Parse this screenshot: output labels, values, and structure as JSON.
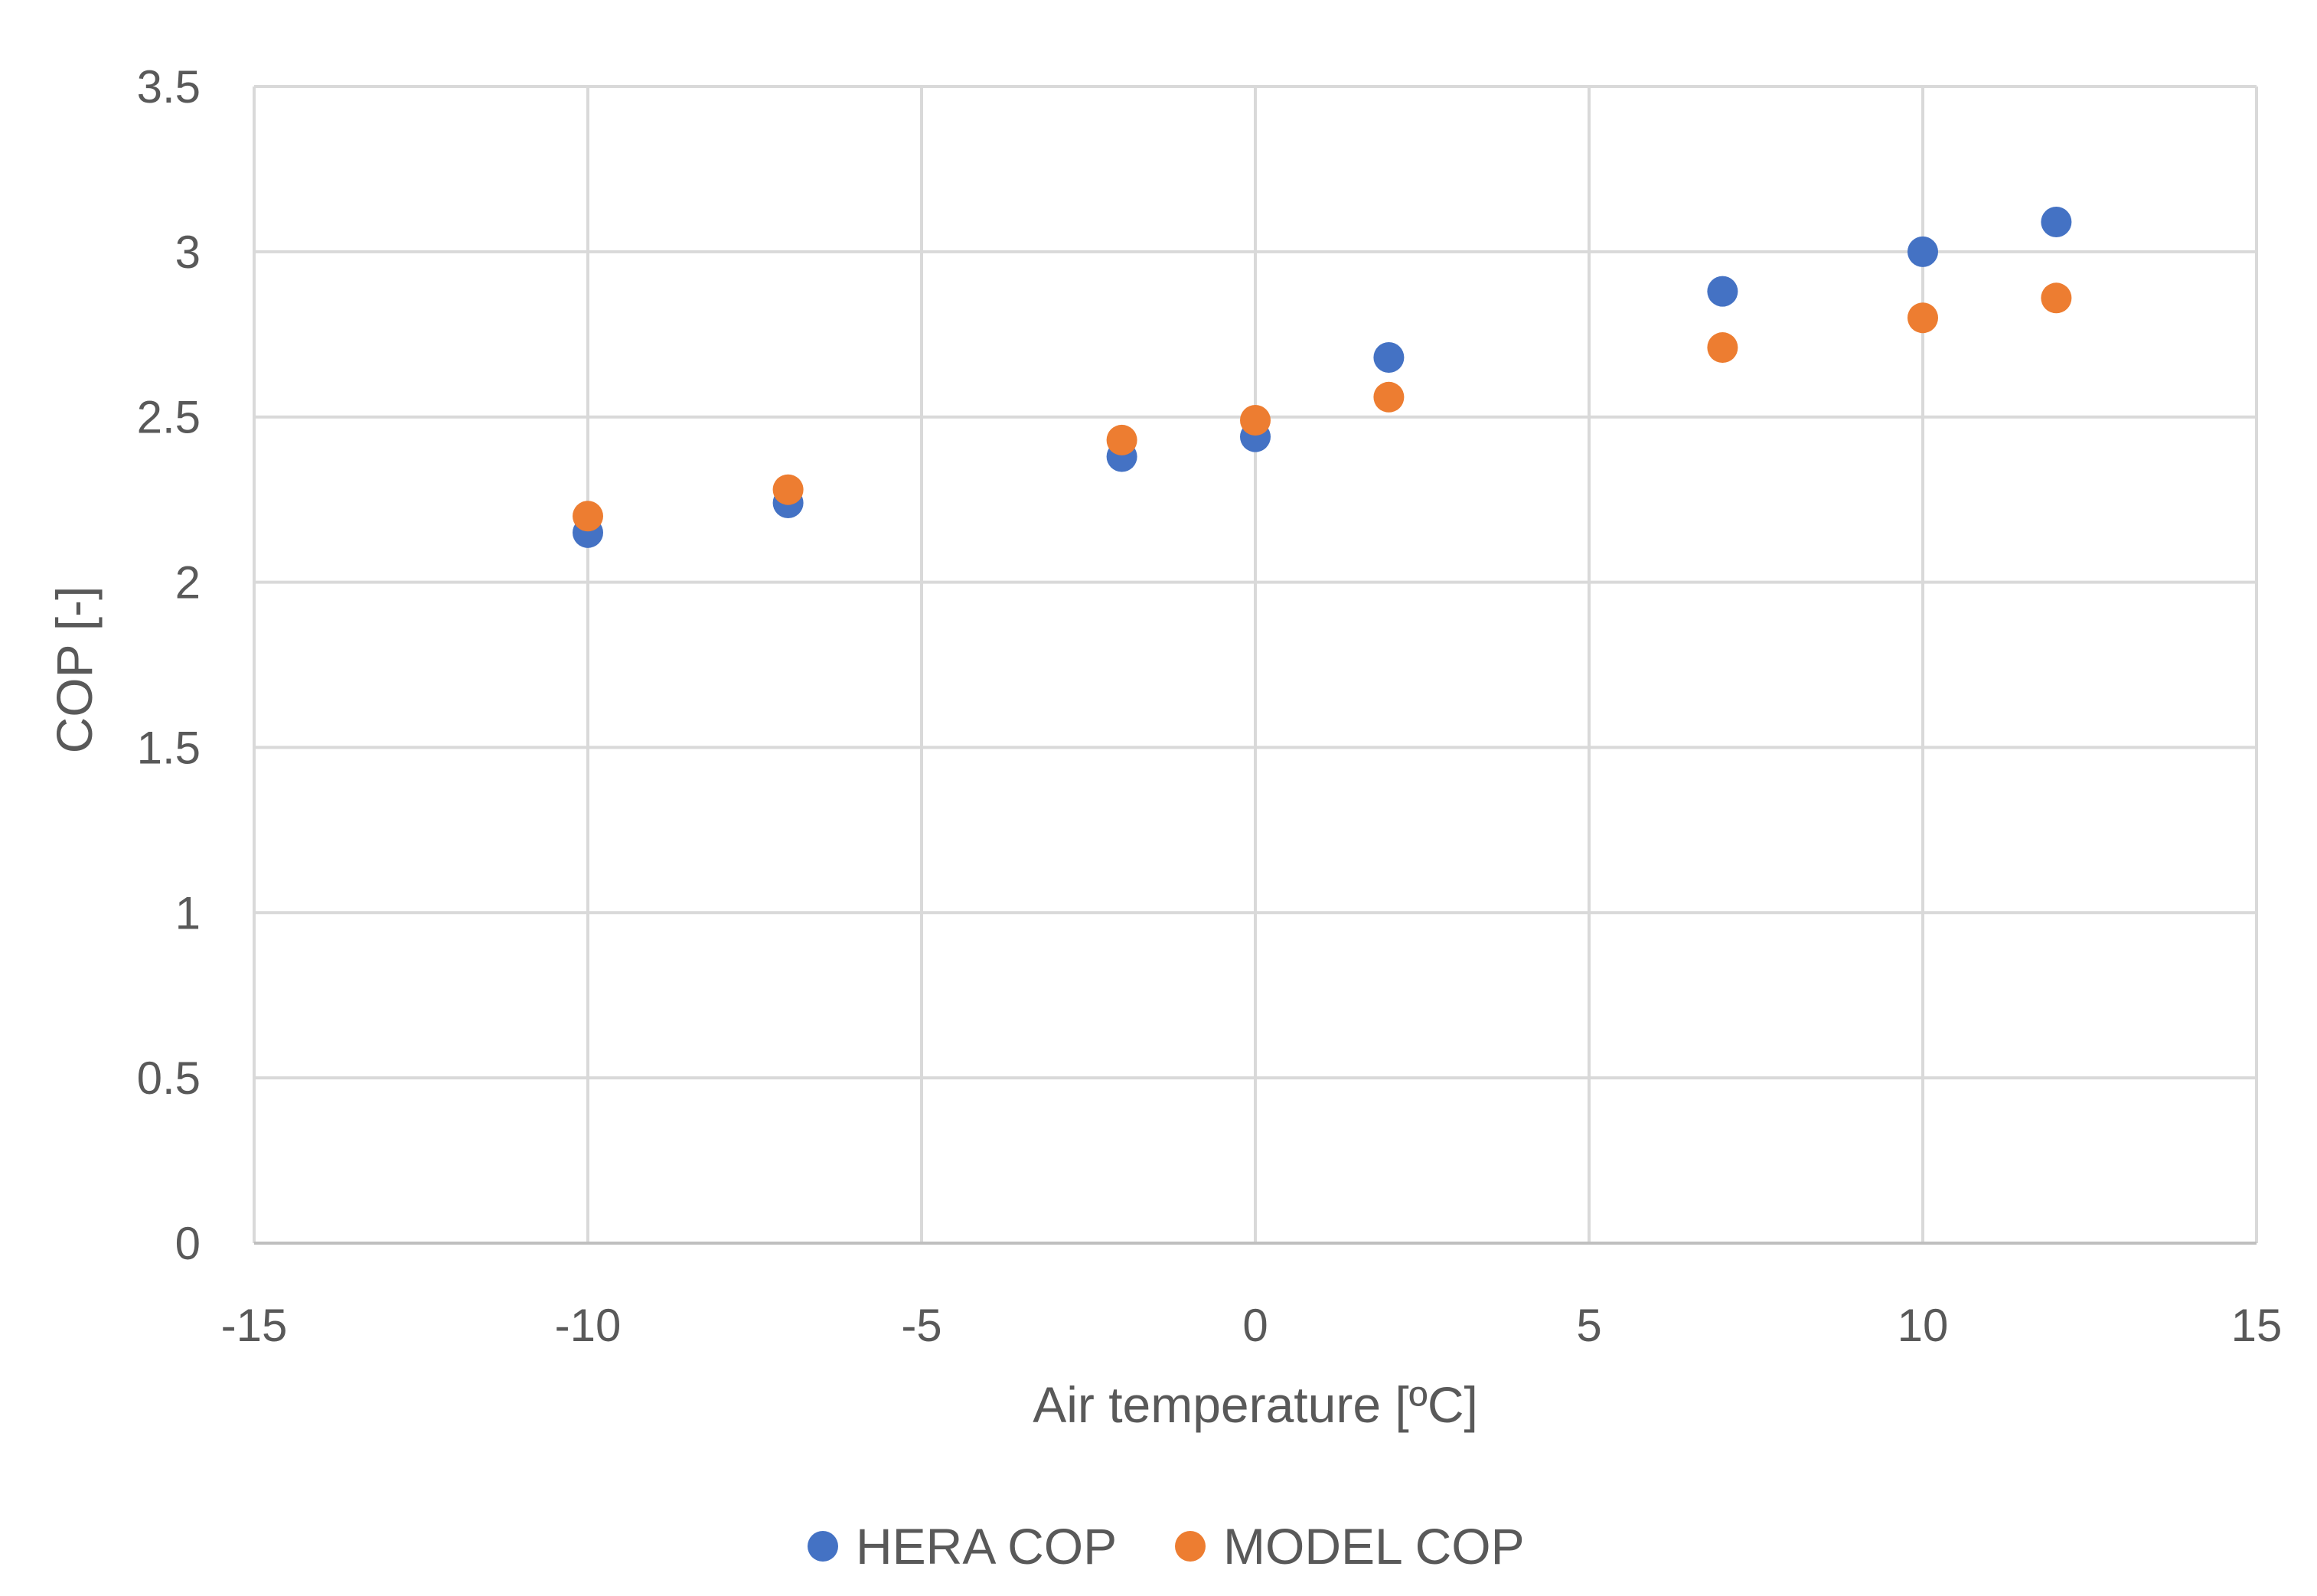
{
  "chart_data": {
    "type": "scatter",
    "title": "",
    "xlabel": "Air temperature [ºC]",
    "ylabel": "COP [-]",
    "xlim": [
      -15,
      15
    ],
    "ylim": [
      0,
      3.5
    ],
    "x_ticks": [
      -15,
      -10,
      -5,
      0,
      5,
      10,
      15
    ],
    "y_ticks": [
      0,
      0.5,
      1,
      1.5,
      2,
      2.5,
      3,
      3.5
    ],
    "x_tick_labels": [
      "-15",
      "-10",
      "-5",
      "0",
      "5",
      "10",
      "15"
    ],
    "y_tick_labels": [
      "0",
      "0.5",
      "1",
      "1.5",
      "2",
      "2.5",
      "3",
      "3.5"
    ],
    "grid": true,
    "legend_position": "bottom",
    "series": [
      {
        "name": "HERA COP",
        "color": "#4472c4",
        "x": [
          -10,
          -7,
          -2,
          0,
          2,
          7,
          10,
          12
        ],
        "y": [
          2.15,
          2.24,
          2.38,
          2.44,
          2.68,
          2.88,
          3.0,
          3.09
        ]
      },
      {
        "name": "MODEL COP",
        "color": "#ed7d31",
        "x": [
          -10,
          -7,
          -2,
          0,
          2,
          7,
          10,
          12
        ],
        "y": [
          2.2,
          2.28,
          2.43,
          2.49,
          2.56,
          2.71,
          2.8,
          2.86
        ]
      }
    ]
  }
}
